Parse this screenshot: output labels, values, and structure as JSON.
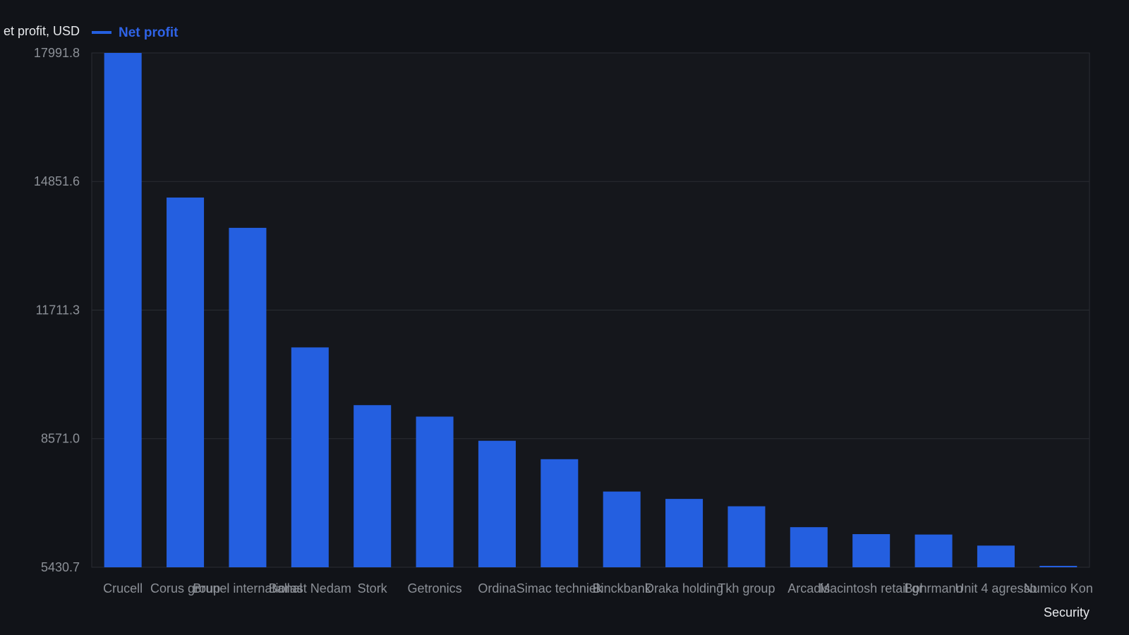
{
  "colors": {
    "background": "#111318",
    "plot_background": "#15171c",
    "bar": "#245fe0",
    "grid": "#2a2d33",
    "tick_text": "#8c9097",
    "title_text": "#e8eaed",
    "legend_text": "#2f63e6"
  },
  "chart_data": {
    "type": "bar",
    "ylabel": "et profit, USD",
    "xlabel": "Security",
    "ylim": [
      5430.7,
      17991.8
    ],
    "yticks": [
      "17991.8",
      "14851.6",
      "11711.3",
      "8571.0",
      "5430.7"
    ],
    "grid": true,
    "legend_position": "top-left",
    "categories": [
      "Crucell",
      "Corus group",
      "Brunel international",
      "Ballast Nedam",
      "Stork",
      "Getronics",
      "Ordina",
      "Simac techniek",
      "Binckbank",
      "Draka holding",
      "Tkh group",
      "Arcadis",
      "Macintosh retail gr",
      "Bohrmann",
      "Unit 4 agresso",
      "Numico Kon"
    ],
    "series": [
      {
        "name": "Net profit",
        "values": [
          17991.8,
          14460,
          13720,
          10800,
          9390,
          9110,
          8520,
          8070,
          7280,
          7100,
          6920,
          6410,
          6240,
          6230,
          5960,
          5430.7
        ]
      }
    ]
  }
}
